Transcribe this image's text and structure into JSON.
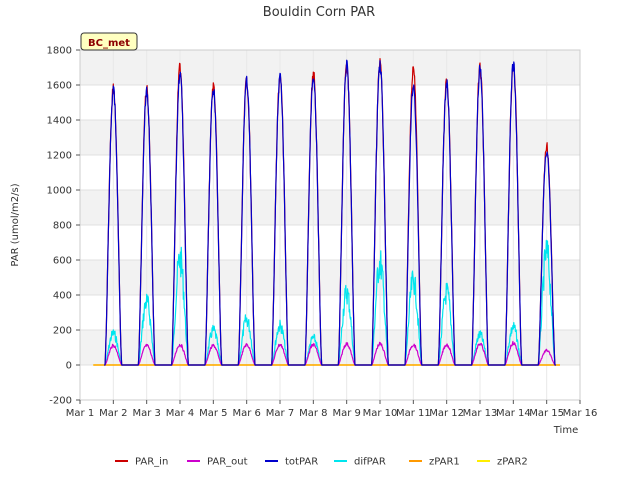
{
  "chart_data": {
    "type": "line",
    "title": "Bouldin Corn PAR",
    "xlabel": "Time",
    "ylabel": "PAR (umol/m2/s)",
    "badge": "BC_met",
    "xlim": [
      1,
      16
    ],
    "ylim": [
      -200,
      1800
    ],
    "x_ticks": [
      {
        "value": 1,
        "label": "Mar 1"
      },
      {
        "value": 2,
        "label": "Mar 2"
      },
      {
        "value": 3,
        "label": "Mar 3"
      },
      {
        "value": 4,
        "label": "Mar 4"
      },
      {
        "value": 5,
        "label": "Mar 5"
      },
      {
        "value": 6,
        "label": "Mar 6"
      },
      {
        "value": 7,
        "label": "Mar 7"
      },
      {
        "value": 8,
        "label": "Mar 8"
      },
      {
        "value": 9,
        "label": "Mar 9"
      },
      {
        "value": 10,
        "label": "Mar 10"
      },
      {
        "value": 11,
        "label": "Mar 11"
      },
      {
        "value": 12,
        "label": "Mar 12"
      },
      {
        "value": 13,
        "label": "Mar 13"
      },
      {
        "value": 14,
        "label": "Mar 14"
      },
      {
        "value": 15,
        "label": "Mar 15"
      },
      {
        "value": 16,
        "label": "Mar 16"
      }
    ],
    "y_ticks": [
      {
        "value": -200,
        "label": "-200"
      },
      {
        "value": 0,
        "label": "0"
      },
      {
        "value": 200,
        "label": "200"
      },
      {
        "value": 400,
        "label": "400"
      },
      {
        "value": 600,
        "label": "600"
      },
      {
        "value": 800,
        "label": "800"
      },
      {
        "value": 1000,
        "label": "1000"
      },
      {
        "value": 1200,
        "label": "1200"
      },
      {
        "value": 1400,
        "label": "1400"
      },
      {
        "value": 1600,
        "label": "1600"
      },
      {
        "value": 1800,
        "label": "1800"
      }
    ],
    "band_color": "#f2f2f2",
    "day_centers": [
      2.0,
      3.0,
      4.0,
      5.0,
      6.0,
      7.0,
      8.0,
      9.0,
      10.0,
      11.0,
      12.0,
      13.0,
      14.0,
      15.0
    ],
    "day_half_width": 0.25,
    "series": [
      {
        "name": "PAR_in",
        "color": "#cc0000",
        "peaks": [
          1620,
          1610,
          1740,
          1625,
          1660,
          1680,
          1700,
          1750,
          1760,
          1730,
          1650,
          1730,
          1760,
          1280
        ]
      },
      {
        "name": "PAR_out",
        "color": "#cc00cc",
        "peaks": [
          120,
          120,
          125,
          120,
          125,
          125,
          125,
          130,
          130,
          125,
          125,
          130,
          135,
          90
        ]
      },
      {
        "name": "totPAR",
        "color": "#0000cc",
        "peaks": [
          1600,
          1595,
          1700,
          1610,
          1650,
          1675,
          1690,
          1745,
          1750,
          1630,
          1640,
          1725,
          1750,
          1250
        ]
      },
      {
        "name": "difPAR",
        "color": "#00e5ee",
        "peaks": [
          210,
          420,
          700,
          230,
          300,
          260,
          180,
          480,
          680,
          560,
          480,
          200,
          250,
          740
        ]
      },
      {
        "name": "zPAR1",
        "color": "#ff9900",
        "peaks": [
          0,
          0,
          0,
          0,
          0,
          0,
          0,
          0,
          0,
          0,
          0,
          0,
          0,
          0
        ]
      },
      {
        "name": "zPAR2",
        "color": "#ffee00",
        "peaks": [
          0,
          0,
          0,
          0,
          0,
          0,
          0,
          0,
          0,
          0,
          0,
          0,
          0,
          0
        ]
      }
    ],
    "legend_position": "bottom"
  }
}
